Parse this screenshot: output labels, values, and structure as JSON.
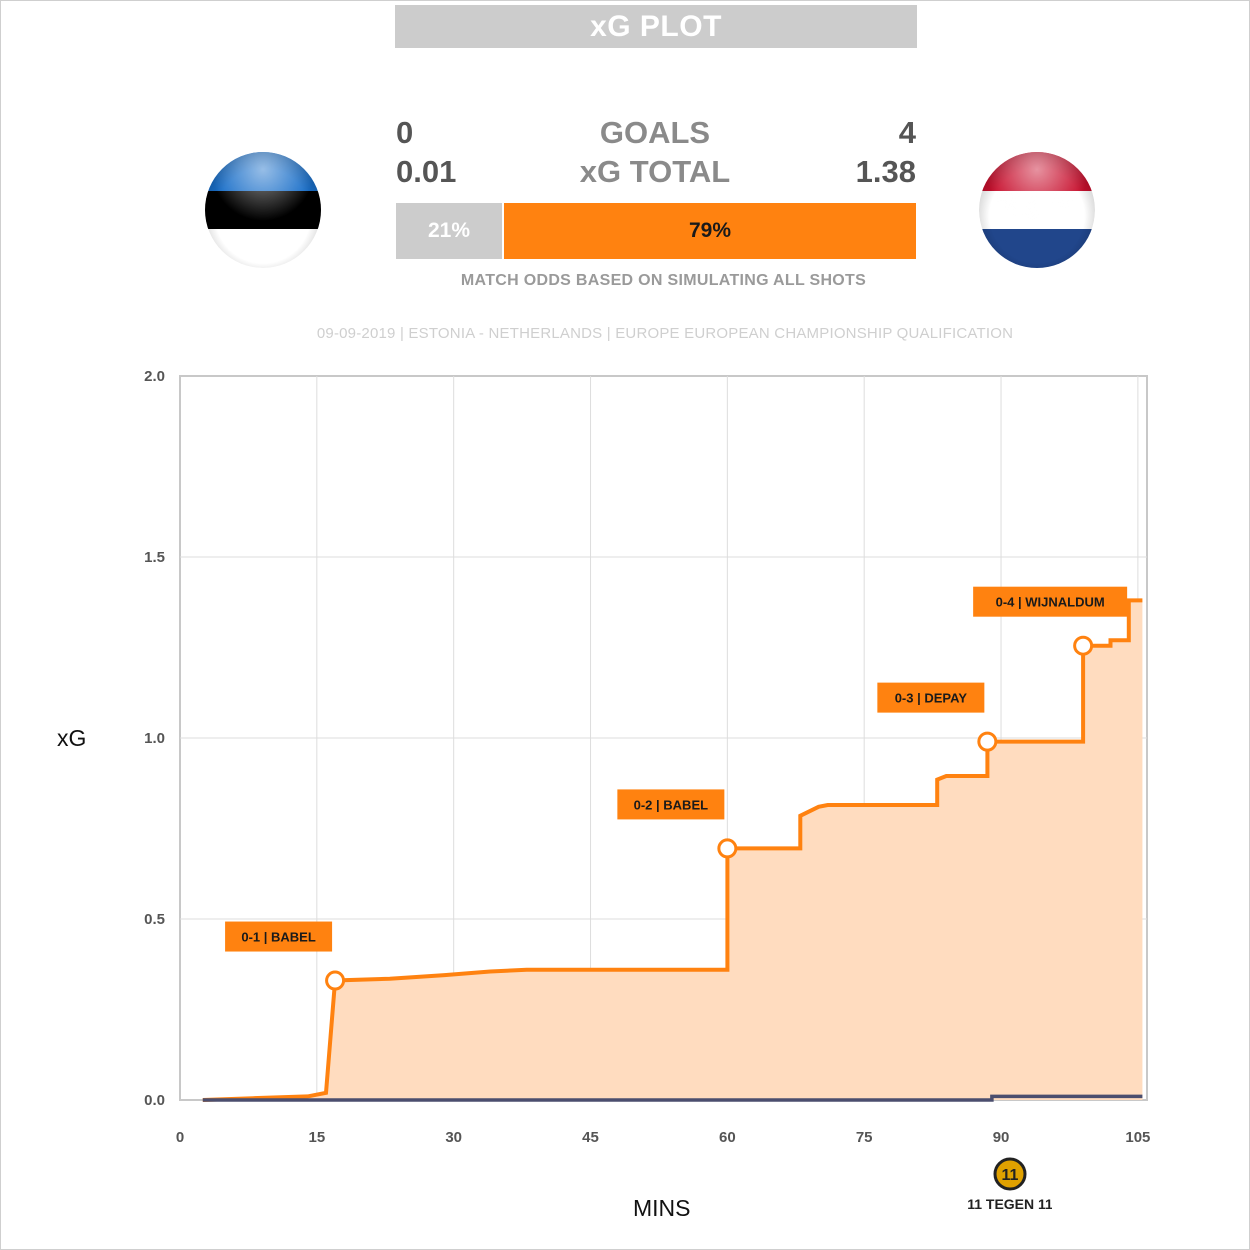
{
  "header": {
    "title": "xG PLOT"
  },
  "scoreboard": {
    "goals_label": "GOALS",
    "xg_label": "xG TOTAL",
    "home": {
      "goals": "0",
      "xg": "0.01",
      "win_pct": "21%",
      "flag": "estonia-flag",
      "colors": [
        "#1a6fc9",
        "#000000",
        "#ffffff"
      ]
    },
    "away": {
      "goals": "4",
      "xg": "1.38",
      "win_pct": "79%",
      "flag": "netherlands-flag",
      "colors": [
        "#c8102e",
        "#ffffff",
        "#21468b"
      ]
    },
    "odds_caption": "MATCH ODDS BASED ON SIMULATING ALL SHOTS"
  },
  "match_info": "09-09-2019 | ESTONIA - NETHERLANDS | EUROPE EUROPEAN CHAMPIONSHIP QUALIFICATION",
  "brand": {
    "logo_mark": "11",
    "logo_text": "11 TEGEN 11"
  },
  "chart_data": {
    "type": "line",
    "xlabel": "MINS",
    "ylabel": "xG",
    "xlim": [
      0,
      106
    ],
    "ylim": [
      0,
      2.0
    ],
    "xticks": [
      0,
      15,
      30,
      45,
      60,
      75,
      90,
      105
    ],
    "yticks": [
      "0.0",
      "0.5",
      "1.0",
      "1.5",
      "2.0"
    ],
    "grid": true,
    "colors": {
      "away": "#ff8210",
      "away_fill": "#ffdcbf",
      "home": "#4b4e6e",
      "label_box": "#ff8210"
    },
    "series": [
      {
        "team": "away",
        "step": [
          [
            2.5,
            0.0
          ],
          [
            8,
            0.005
          ],
          [
            14,
            0.01
          ],
          [
            16,
            0.02
          ],
          [
            17,
            0.33
          ],
          [
            23,
            0.335
          ],
          [
            29,
            0.345
          ],
          [
            34,
            0.355
          ],
          [
            38,
            0.36
          ],
          [
            60,
            0.36
          ],
          [
            60,
            0.695
          ],
          [
            68,
            0.695
          ],
          [
            68,
            0.785
          ],
          [
            70,
            0.81
          ],
          [
            71,
            0.815
          ],
          [
            83,
            0.815
          ],
          [
            83,
            0.885
          ],
          [
            84,
            0.895
          ],
          [
            88.5,
            0.895
          ],
          [
            88.5,
            0.99
          ],
          [
            99,
            0.99
          ],
          [
            99,
            1.255
          ],
          [
            102,
            1.255
          ],
          [
            102,
            1.27
          ],
          [
            104,
            1.27
          ],
          [
            104,
            1.38
          ],
          [
            105.5,
            1.38
          ]
        ]
      },
      {
        "team": "home",
        "step": [
          [
            2.5,
            0.0
          ],
          [
            89,
            0.0
          ],
          [
            89,
            0.01
          ],
          [
            105.5,
            0.01
          ]
        ]
      }
    ],
    "goals": [
      {
        "minute": 17,
        "xg": 0.33,
        "label": "0-1 | BABEL"
      },
      {
        "minute": 60,
        "xg": 0.695,
        "label": "0-2 | BABEL"
      },
      {
        "minute": 88.5,
        "xg": 0.99,
        "label": "0-3 | DEPAY"
      },
      {
        "minute": 99,
        "xg": 1.255,
        "label": "0-4 | WIJNALDUM"
      }
    ]
  }
}
